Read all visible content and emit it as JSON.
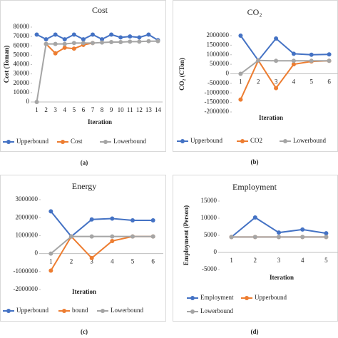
{
  "chart_data": [
    {
      "type": "line",
      "title": "Cost",
      "y_label": "Cost (Toman)",
      "x_label": "Iteration",
      "caption": "(a)",
      "categories": [
        "1",
        "2",
        "3",
        "4",
        "5",
        "6",
        "7",
        "8",
        "9",
        "10",
        "11",
        "12",
        "13",
        "14"
      ],
      "ylim": [
        0,
        80000
      ],
      "yticks": [
        0,
        10000,
        20000,
        30000,
        40000,
        50000,
        60000,
        70000,
        80000
      ],
      "series": [
        {
          "name": "Upperbound",
          "color": "#4472c4",
          "values": [
            72000,
            67000,
            72000,
            67000,
            72000,
            67000,
            72000,
            67000,
            72000,
            69000,
            70000,
            69000,
            72000,
            66000
          ]
        },
        {
          "name": "Cost",
          "color": "#ed7d31",
          "values": [
            null,
            62000,
            52000,
            58000,
            57000,
            61000,
            63000,
            null,
            null,
            null,
            null,
            null,
            null,
            null
          ]
        },
        {
          "name": "Lowerbound",
          "color": "#a5a5a5",
          "values": [
            0,
            62000,
            62000,
            62000,
            63000,
            63000,
            63000,
            63500,
            64000,
            64000,
            64500,
            64500,
            65000,
            65000
          ]
        }
      ]
    },
    {
      "type": "line",
      "title": "CO₂",
      "y_label": "CO₂ (CTon)",
      "x_label": "Iteration",
      "caption": "(b)",
      "categories": [
        "1",
        "2",
        "3",
        "4",
        "5",
        "6"
      ],
      "ylim": [
        -2000000,
        2000000
      ],
      "yticks": [
        -2000000,
        -1500000,
        -1000000,
        -500000,
        0,
        500000,
        1000000,
        1500000,
        2000000
      ],
      "series": [
        {
          "name": "Upperbound",
          "color": "#4472c4",
          "values": [
            2000000,
            700000,
            1850000,
            1050000,
            1000000,
            1020000
          ]
        },
        {
          "name": "CO2",
          "color": "#ed7d31",
          "values": [
            -1350000,
            700000,
            -750000,
            500000,
            650000,
            680000
          ]
        },
        {
          "name": "Lowerbound",
          "color": "#a5a5a5",
          "values": [
            0,
            700000,
            680000,
            680000,
            680000,
            680000
          ]
        }
      ]
    },
    {
      "type": "line",
      "title": "Energy",
      "x_label": "Iteration",
      "caption": "(c)",
      "categories": [
        "1",
        "2",
        "3",
        "4",
        "5",
        "6"
      ],
      "ylim": [
        -2000000,
        3000000
      ],
      "yticks": [
        -2000000,
        -1000000,
        0,
        1000000,
        2000000,
        3000000
      ],
      "series": [
        {
          "name": "Upperbound",
          "color": "#4472c4",
          "values": [
            2350000,
            950000,
            1900000,
            1950000,
            1850000,
            1850000
          ]
        },
        {
          "name": "bound",
          "color": "#ed7d31",
          "values": [
            -950000,
            950000,
            -250000,
            700000,
            950000,
            950000
          ]
        },
        {
          "name": "Lowerbound",
          "color": "#a5a5a5",
          "values": [
            0,
            950000,
            950000,
            950000,
            950000,
            950000
          ]
        }
      ]
    },
    {
      "type": "line",
      "title": "Employment",
      "y_label": "Employment (Person)",
      "x_label": "Iteration",
      "caption": "(d)",
      "categories": [
        "1",
        "2",
        "3",
        "4",
        "5"
      ],
      "ylim": [
        -5000,
        15000
      ],
      "yticks": [
        -5000,
        0,
        5000,
        10000,
        15000
      ],
      "series": [
        {
          "name": "Employment",
          "color": "#4472c4",
          "values": [
            4500,
            10200,
            5800,
            6700,
            5600
          ]
        },
        {
          "name": "Upperbound",
          "color": "#ed7d31",
          "values": [
            4500,
            4500,
            4500,
            4500,
            4500
          ]
        },
        {
          "name": "Lowerbound",
          "color": "#a5a5a5",
          "values": [
            4500,
            4500,
            4500,
            4500,
            4500
          ]
        }
      ]
    }
  ]
}
